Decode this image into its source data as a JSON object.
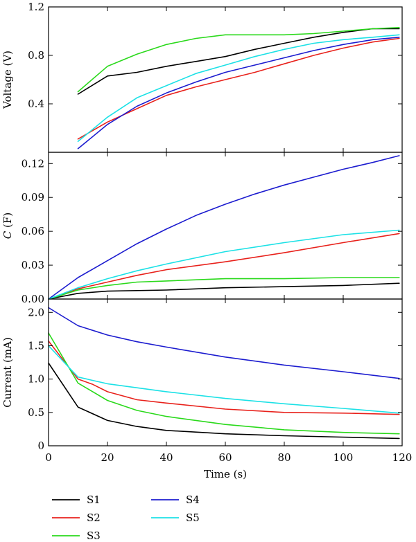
{
  "chart_data": [
    {
      "type": "line",
      "ylabel": "Voltage (V)",
      "ylabel_italic_part": "",
      "ylim": [
        0,
        1.2
      ],
      "yticks": [
        0.4,
        0.8,
        1.2
      ],
      "ytick_labels": [
        "0.4",
        "0.8",
        "1.2"
      ],
      "series": [
        {
          "name": "S1",
          "x": [
            10,
            20,
            30,
            40,
            50,
            60,
            70,
            80,
            90,
            100,
            110,
            119
          ],
          "y": [
            0.48,
            0.63,
            0.66,
            0.71,
            0.75,
            0.79,
            0.85,
            0.9,
            0.95,
            0.99,
            1.02,
            1.02
          ]
        },
        {
          "name": "S2",
          "x": [
            10,
            20,
            30,
            40,
            50,
            60,
            70,
            80,
            90,
            100,
            110,
            119
          ],
          "y": [
            0.11,
            0.25,
            0.36,
            0.47,
            0.54,
            0.6,
            0.66,
            0.73,
            0.8,
            0.86,
            0.91,
            0.94
          ]
        },
        {
          "name": "S3",
          "x": [
            10,
            20,
            30,
            40,
            50,
            60,
            70,
            80,
            90,
            100,
            110,
            119
          ],
          "y": [
            0.5,
            0.71,
            0.81,
            0.89,
            0.94,
            0.97,
            0.97,
            0.97,
            0.98,
            1.0,
            1.02,
            1.03
          ]
        },
        {
          "name": "S4",
          "x": [
            10,
            20,
            30,
            40,
            50,
            60,
            70,
            80,
            90,
            100,
            110,
            119
          ],
          "y": [
            0.03,
            0.23,
            0.38,
            0.49,
            0.58,
            0.66,
            0.72,
            0.78,
            0.84,
            0.89,
            0.93,
            0.95
          ]
        },
        {
          "name": "S5",
          "x": [
            10,
            20,
            30,
            40,
            50,
            60,
            70,
            80,
            90,
            100,
            110,
            119
          ],
          "y": [
            0.09,
            0.29,
            0.45,
            0.55,
            0.65,
            0.72,
            0.79,
            0.85,
            0.9,
            0.93,
            0.95,
            0.97
          ]
        }
      ]
    },
    {
      "type": "line",
      "ylabel": "(F)",
      "ylabel_italic_part": "C",
      "ylim": [
        0,
        0.13
      ],
      "yticks": [
        0,
        0.03,
        0.06,
        0.09,
        0.12
      ],
      "ytick_labels": [
        "0.00",
        "0.03",
        "0.06",
        "0.09",
        "0.12"
      ],
      "series": [
        {
          "name": "S1",
          "x": [
            0,
            10,
            20,
            40,
            60,
            80,
            100,
            119
          ],
          "y": [
            0.0,
            0.005,
            0.007,
            0.008,
            0.01,
            0.011,
            0.012,
            0.014
          ]
        },
        {
          "name": "S2",
          "x": [
            0,
            10,
            20,
            30,
            40,
            60,
            80,
            100,
            119
          ],
          "y": [
            0.0,
            0.009,
            0.015,
            0.021,
            0.026,
            0.033,
            0.041,
            0.05,
            0.058
          ]
        },
        {
          "name": "S3",
          "x": [
            0,
            10,
            20,
            30,
            40,
            60,
            80,
            100,
            119
          ],
          "y": [
            0.0,
            0.008,
            0.012,
            0.015,
            0.016,
            0.018,
            0.018,
            0.019,
            0.019
          ]
        },
        {
          "name": "S4",
          "x": [
            0,
            10,
            20,
            30,
            40,
            50,
            60,
            70,
            80,
            90,
            100,
            110,
            119
          ],
          "y": [
            0.0,
            0.019,
            0.034,
            0.049,
            0.062,
            0.074,
            0.084,
            0.093,
            0.101,
            0.108,
            0.115,
            0.121,
            0.127
          ]
        },
        {
          "name": "S5",
          "x": [
            0,
            10,
            20,
            30,
            40,
            60,
            80,
            100,
            119
          ],
          "y": [
            0.0,
            0.01,
            0.018,
            0.025,
            0.031,
            0.042,
            0.05,
            0.057,
            0.061
          ]
        }
      ]
    },
    {
      "type": "line",
      "xlabel": "Time (s)",
      "ylabel": "Current (mA)",
      "ylabel_italic_part": "",
      "xlim": [
        0,
        120
      ],
      "xticks": [
        0,
        20,
        40,
        60,
        80,
        100,
        120
      ],
      "xtick_labels": [
        "0",
        "20",
        "40",
        "60",
        "80",
        "100",
        "120"
      ],
      "ylim": [
        0,
        2.2
      ],
      "yticks": [
        0,
        0.5,
        1.0,
        1.5,
        2.0
      ],
      "ytick_labels": [
        "0",
        "0.5",
        "1.0",
        "1.5",
        "2.0"
      ],
      "series": [
        {
          "name": "S1",
          "x": [
            0,
            10,
            20,
            30,
            40,
            60,
            80,
            100,
            119
          ],
          "y": [
            1.24,
            0.58,
            0.38,
            0.29,
            0.23,
            0.18,
            0.15,
            0.13,
            0.11
          ]
        },
        {
          "name": "S2",
          "x": [
            0,
            10,
            15,
            20,
            30,
            40,
            60,
            80,
            100,
            119
          ],
          "y": [
            1.57,
            1.0,
            0.92,
            0.81,
            0.69,
            0.64,
            0.55,
            0.5,
            0.49,
            0.47
          ]
        },
        {
          "name": "S3",
          "x": [
            0,
            10,
            20,
            30,
            40,
            60,
            80,
            100,
            119
          ],
          "y": [
            1.69,
            0.94,
            0.68,
            0.53,
            0.44,
            0.32,
            0.24,
            0.2,
            0.18
          ]
        },
        {
          "name": "S4",
          "x": [
            0,
            10,
            20,
            30,
            40,
            60,
            80,
            100,
            119
          ],
          "y": [
            2.07,
            1.8,
            1.66,
            1.56,
            1.48,
            1.33,
            1.21,
            1.11,
            1.01
          ]
        },
        {
          "name": "S5",
          "x": [
            0,
            10,
            20,
            30,
            40,
            60,
            80,
            100,
            119
          ],
          "y": [
            1.5,
            1.03,
            0.93,
            0.87,
            0.81,
            0.71,
            0.63,
            0.56,
            0.49
          ]
        }
      ]
    }
  ],
  "legend": {
    "placement": "bottom",
    "entries": [
      {
        "name": "S1",
        "color": "#000000"
      },
      {
        "name": "S2",
        "color": "#e8211b"
      },
      {
        "name": "S3",
        "color": "#2ad91b"
      },
      {
        "name": "S4",
        "color": "#1c1ccf"
      },
      {
        "name": "S5",
        "color": "#1ce1e6"
      }
    ]
  }
}
